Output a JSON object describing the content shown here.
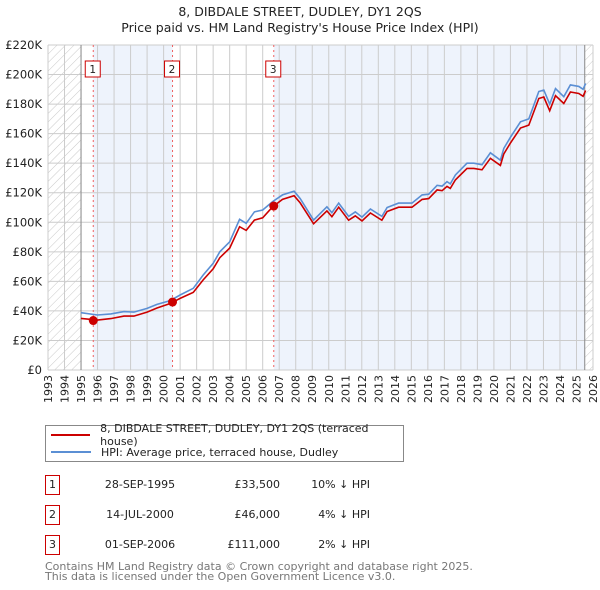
{
  "title_line1": "8, DIBDALE STREET, DUDLEY, DY1 2QS",
  "title_line2": "Price paid vs. HM Land Registry's House Price Index (HPI)",
  "colors": {
    "property": "#cc0000",
    "hpi": "#5b8fd4",
    "shade": "#eef3fc",
    "grid": "#cccccc"
  },
  "chart_data": {
    "type": "line",
    "title": "8, DIBDALE STREET, DUDLEY, DY1 2QS - Price paid vs. HM Land Registry's House Price Index (HPI)",
    "xlim": [
      1993,
      2026
    ],
    "ylim": [
      0,
      220000
    ],
    "x_ticks": [
      "1993",
      "1994",
      "1995",
      "1996",
      "1997",
      "1998",
      "1999",
      "2000",
      "2001",
      "2002",
      "2003",
      "2004",
      "2005",
      "2006",
      "2007",
      "2008",
      "2009",
      "2010",
      "2011",
      "2012",
      "2013",
      "2014",
      "2015",
      "2016",
      "2017",
      "2018",
      "2019",
      "2020",
      "2021",
      "2022",
      "2023",
      "2024",
      "2025",
      "2026"
    ],
    "y_ticks": [
      {
        "v": 0,
        "label": "£0"
      },
      {
        "v": 20000,
        "label": "£20K"
      },
      {
        "v": 40000,
        "label": "£40K"
      },
      {
        "v": 60000,
        "label": "£60K"
      },
      {
        "v": 80000,
        "label": "£80K"
      },
      {
        "v": 100000,
        "label": "£100K"
      },
      {
        "v": 120000,
        "label": "£120K"
      },
      {
        "v": 140000,
        "label": "£140K"
      },
      {
        "v": 160000,
        "label": "£160K"
      },
      {
        "v": 180000,
        "label": "£180K"
      },
      {
        "v": 200000,
        "label": "£200K"
      },
      {
        "v": 220000,
        "label": "£220K"
      }
    ],
    "grid": true,
    "x": [
      1995.0,
      1996.0,
      1996.8,
      1997.6,
      1998.2,
      1999.0,
      1999.6,
      2000.4,
      2001.0,
      2001.8,
      2002.4,
      2003.0,
      2003.4,
      2004.0,
      2004.6,
      2005.0,
      2005.5,
      2006.0,
      2006.6,
      2007.2,
      2007.9,
      2008.27,
      2009.08,
      2009.89,
      2010.19,
      2010.6,
      2011.2,
      2011.61,
      2012.01,
      2012.52,
      2013.22,
      2013.53,
      2014.23,
      2015.04,
      2015.65,
      2016.05,
      2016.56,
      2016.86,
      2017.16,
      2017.36,
      2017.67,
      2018.37,
      2018.78,
      2019.28,
      2019.79,
      2020.39,
      2020.6,
      2021.0,
      2021.61,
      2022.11,
      2022.72,
      2023.02,
      2023.38,
      2023.73,
      2024.23,
      2024.63,
      2025.14,
      2025.4,
      2025.55
    ],
    "series": [
      {
        "name": "8, DIBDALE STREET, DUDLEY, DY1 2QS (terraced house)",
        "color": "#cc0000",
        "values_k": [
          34.9,
          33.8,
          34.8,
          36.5,
          36.5,
          39.2,
          42,
          45,
          48.5,
          52.5,
          61,
          68.5,
          76,
          82.5,
          97,
          94.5,
          101.5,
          103,
          110.5,
          115.5,
          118,
          113.1,
          99,
          107.7,
          103.8,
          110.2,
          101.4,
          104.3,
          100.9,
          106.3,
          101.4,
          107.3,
          110.2,
          110.2,
          115.5,
          116,
          121.9,
          121.4,
          124.3,
          122.9,
          128.7,
          136.5,
          136.5,
          135.5,
          143.3,
          138.5,
          146.3,
          153.6,
          163.8,
          165.8,
          183.8,
          184.8,
          175.5,
          185.7,
          180.4,
          188.2,
          187.2,
          185.3,
          189.2
        ]
      },
      {
        "name": "HPI: Average price, terraced house, Dudley",
        "color": "#5b8fd4",
        "values_k": [
          38.8,
          37.2,
          38,
          39.5,
          39.2,
          41.7,
          44.4,
          47,
          50.8,
          55.3,
          64.3,
          72.2,
          80,
          86.8,
          102,
          99.3,
          107,
          108.3,
          114,
          118.5,
          121,
          116,
          101.5,
          110.5,
          106.5,
          113,
          104,
          107,
          103.5,
          109,
          104,
          110,
          113,
          113,
          118.5,
          119,
          125,
          124.5,
          127.5,
          126,
          132,
          140,
          140,
          139,
          147,
          142,
          150,
          157.5,
          168,
          170,
          188.5,
          189.5,
          180,
          190.5,
          185,
          193,
          192,
          190,
          194
        ]
      }
    ],
    "data_end_year": 2025.5,
    "sales": [
      {
        "num": "1",
        "year": 1995.74,
        "value": 33500
      },
      {
        "num": "2",
        "year": 2000.54,
        "value": 46000
      },
      {
        "num": "3",
        "year": 2006.67,
        "value": 111000
      }
    ],
    "legend_position": "below"
  },
  "legend": [
    {
      "label": "8, DIBDALE STREET, DUDLEY, DY1 2QS (terraced house)"
    },
    {
      "label": "HPI: Average price, terraced house, Dudley"
    }
  ],
  "transactions": [
    {
      "num": "1",
      "date": "28-SEP-1995",
      "price": "£33,500",
      "hpi": "10% ↓ HPI"
    },
    {
      "num": "2",
      "date": "14-JUL-2000",
      "price": "£46,000",
      "hpi": "4% ↓ HPI"
    },
    {
      "num": "3",
      "date": "01-SEP-2006",
      "price": "£111,000",
      "hpi": "2% ↓ HPI"
    }
  ],
  "footer_line1": "Contains HM Land Registry data © Crown copyright and database right 2025.",
  "footer_line2": "This data is licensed under the Open Government Licence v3.0."
}
